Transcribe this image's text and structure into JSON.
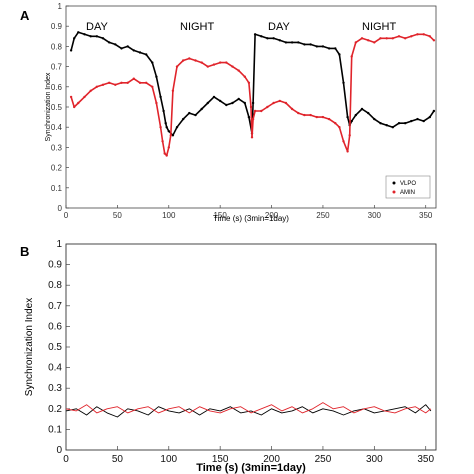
{
  "chart_data": [
    {
      "panel_label": "A",
      "type": "line",
      "xlabel": "Time (s) (3min=1day)",
      "ylabel": "Synchronization Index",
      "xlim": [
        0,
        360
      ],
      "ylim": [
        0,
        1
      ],
      "xticks": [
        "0",
        "50",
        "100",
        "150",
        "200",
        "250",
        "300",
        "350"
      ],
      "yticks": [
        "0",
        "0.1",
        "0.2",
        "0.3",
        "0.4",
        "0.5",
        "0.6",
        "0.7",
        "0.8",
        "0.9",
        "1"
      ],
      "grid": false,
      "legend_position": "bottom-right",
      "annotations": [
        "DAY",
        "NIGHT",
        "DAY",
        "NIGHT"
      ],
      "series": [
        {
          "name": "VLPO",
          "color": "#000000",
          "x": [
            5,
            8,
            12,
            18,
            24,
            30,
            36,
            42,
            48,
            54,
            60,
            66,
            72,
            78,
            84,
            88,
            92,
            95,
            97,
            98,
            100,
            104,
            108,
            114,
            120,
            126,
            132,
            138,
            144,
            150,
            156,
            162,
            168,
            174,
            178,
            181,
            182,
            184,
            190,
            196,
            202,
            208,
            214,
            220,
            226,
            232,
            238,
            244,
            250,
            256,
            262,
            266,
            270,
            274,
            276,
            278,
            282,
            288,
            294,
            300,
            306,
            312,
            318,
            324,
            330,
            336,
            342,
            348,
            354,
            358
          ],
          "y": [
            0.78,
            0.84,
            0.87,
            0.86,
            0.85,
            0.85,
            0.84,
            0.82,
            0.81,
            0.79,
            0.8,
            0.78,
            0.77,
            0.76,
            0.72,
            0.65,
            0.55,
            0.48,
            0.42,
            0.4,
            0.38,
            0.36,
            0.4,
            0.44,
            0.47,
            0.46,
            0.49,
            0.52,
            0.55,
            0.53,
            0.51,
            0.52,
            0.54,
            0.52,
            0.45,
            0.37,
            0.52,
            0.86,
            0.85,
            0.84,
            0.84,
            0.83,
            0.82,
            0.82,
            0.82,
            0.81,
            0.81,
            0.8,
            0.8,
            0.79,
            0.79,
            0.76,
            0.62,
            0.45,
            0.41,
            0.43,
            0.46,
            0.49,
            0.47,
            0.44,
            0.42,
            0.41,
            0.4,
            0.42,
            0.42,
            0.43,
            0.44,
            0.43,
            0.45,
            0.48
          ]
        },
        {
          "name": "AMIN",
          "color": "#e0242b",
          "x": [
            5,
            8,
            12,
            18,
            24,
            30,
            36,
            42,
            48,
            54,
            60,
            66,
            72,
            78,
            84,
            88,
            92,
            94,
            96,
            98,
            100,
            102,
            104,
            108,
            114,
            120,
            126,
            132,
            138,
            144,
            150,
            156,
            162,
            168,
            174,
            178,
            180,
            181,
            182,
            184,
            190,
            196,
            202,
            208,
            214,
            220,
            226,
            232,
            238,
            244,
            250,
            256,
            262,
            266,
            270,
            274,
            276,
            278,
            282,
            288,
            294,
            300,
            306,
            312,
            318,
            324,
            330,
            336,
            342,
            348,
            354,
            358
          ],
          "y": [
            0.55,
            0.5,
            0.52,
            0.55,
            0.58,
            0.6,
            0.61,
            0.62,
            0.61,
            0.62,
            0.62,
            0.64,
            0.62,
            0.62,
            0.6,
            0.52,
            0.4,
            0.33,
            0.27,
            0.26,
            0.3,
            0.36,
            0.58,
            0.7,
            0.73,
            0.74,
            0.73,
            0.72,
            0.7,
            0.71,
            0.72,
            0.72,
            0.7,
            0.68,
            0.65,
            0.62,
            0.5,
            0.35,
            0.44,
            0.48,
            0.48,
            0.5,
            0.52,
            0.53,
            0.52,
            0.49,
            0.47,
            0.46,
            0.46,
            0.45,
            0.45,
            0.44,
            0.42,
            0.4,
            0.33,
            0.28,
            0.36,
            0.75,
            0.82,
            0.84,
            0.83,
            0.82,
            0.84,
            0.84,
            0.84,
            0.85,
            0.84,
            0.85,
            0.86,
            0.86,
            0.85,
            0.83
          ]
        }
      ]
    },
    {
      "panel_label": "B",
      "type": "line",
      "xlabel": "Time (s) (3min=1day)",
      "ylabel": "Synchronization Index",
      "xlim": [
        0,
        360
      ],
      "ylim": [
        0,
        1
      ],
      "xticks": [
        "0",
        "50",
        "100",
        "150",
        "200",
        "250",
        "300",
        "350"
      ],
      "yticks": [
        "0",
        "0.1",
        "0.2",
        "0.3",
        "0.4",
        "0.5",
        "0.6",
        "0.7",
        "0.8",
        "0.9",
        "1"
      ],
      "grid": false,
      "series": [
        {
          "color": "#000000",
          "x": [
            0,
            10,
            20,
            30,
            40,
            50,
            60,
            70,
            80,
            90,
            100,
            110,
            120,
            130,
            140,
            150,
            160,
            170,
            180,
            190,
            200,
            210,
            220,
            230,
            240,
            250,
            260,
            270,
            280,
            290,
            300,
            310,
            320,
            330,
            340,
            350,
            355
          ],
          "y": [
            0.19,
            0.2,
            0.17,
            0.21,
            0.18,
            0.16,
            0.2,
            0.19,
            0.17,
            0.21,
            0.19,
            0.18,
            0.2,
            0.17,
            0.2,
            0.19,
            0.21,
            0.18,
            0.19,
            0.17,
            0.2,
            0.18,
            0.19,
            0.21,
            0.18,
            0.2,
            0.19,
            0.17,
            0.19,
            0.2,
            0.18,
            0.19,
            0.2,
            0.21,
            0.18,
            0.22,
            0.19
          ]
        },
        {
          "color": "#e0242b",
          "x": [
            0,
            10,
            20,
            30,
            40,
            50,
            60,
            70,
            80,
            90,
            100,
            110,
            120,
            130,
            140,
            150,
            160,
            170,
            180,
            190,
            200,
            210,
            220,
            230,
            240,
            250,
            260,
            270,
            280,
            290,
            300,
            310,
            320,
            330,
            340,
            350,
            355
          ],
          "y": [
            0.2,
            0.19,
            0.22,
            0.18,
            0.2,
            0.21,
            0.18,
            0.2,
            0.21,
            0.18,
            0.2,
            0.21,
            0.18,
            0.21,
            0.19,
            0.18,
            0.2,
            0.21,
            0.18,
            0.2,
            0.22,
            0.19,
            0.21,
            0.18,
            0.2,
            0.23,
            0.2,
            0.21,
            0.18,
            0.2,
            0.21,
            0.19,
            0.18,
            0.2,
            0.21,
            0.18,
            0.2
          ]
        }
      ]
    }
  ]
}
